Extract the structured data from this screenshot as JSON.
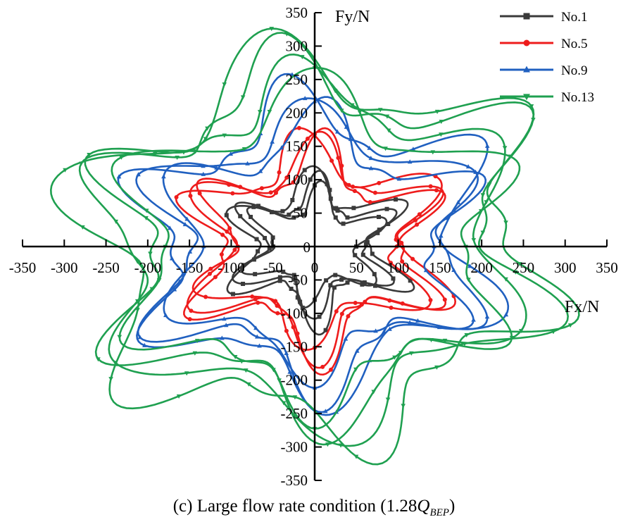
{
  "chart_data": {
    "type": "line",
    "title": "",
    "xlabel": "Fx/N",
    "ylabel": "Fy/N",
    "xlim": [
      -350,
      350
    ],
    "ylim": [
      -350,
      350
    ],
    "xticks": [
      -350,
      -300,
      -250,
      -200,
      -150,
      -100,
      -50,
      0,
      50,
      100,
      150,
      200,
      250,
      300,
      350
    ],
    "yticks": [
      -350,
      -300,
      -250,
      -200,
      -150,
      -100,
      -50,
      0,
      50,
      100,
      150,
      200,
      250,
      300,
      350
    ],
    "grid": false,
    "legend_position": "top-right",
    "series": [
      {
        "name": "No.1",
        "color": "#3a3a3a",
        "marker": "square",
        "star_outer": 105,
        "star_inner": 55,
        "loops": [
          0.9,
          1.05,
          1.2
        ],
        "phase": 90
      },
      {
        "name": "No.5",
        "color": "#ee1c1c",
        "marker": "circle",
        "star_outer": 175,
        "star_inner": 100,
        "loops": [
          0.95,
          1.0,
          1.05
        ],
        "phase": 90
      },
      {
        "name": "No.9",
        "color": "#2060c0",
        "marker": "triangle-up",
        "star_outer": 235,
        "star_inner": 150,
        "loops": [
          0.92,
          1.0,
          1.08
        ],
        "phase": 90
      },
      {
        "name": "No.13",
        "color": "#1fa050",
        "marker": "triangle-down",
        "star_outer": 300,
        "star_inner": 200,
        "loops": [
          0.9,
          0.97,
          1.04,
          1.1
        ],
        "phase": 90
      }
    ]
  },
  "caption": {
    "prefix": "(c) Large flow rate condition (1.28",
    "q": "Q",
    "sub": "BEP",
    "suffix": ")"
  }
}
